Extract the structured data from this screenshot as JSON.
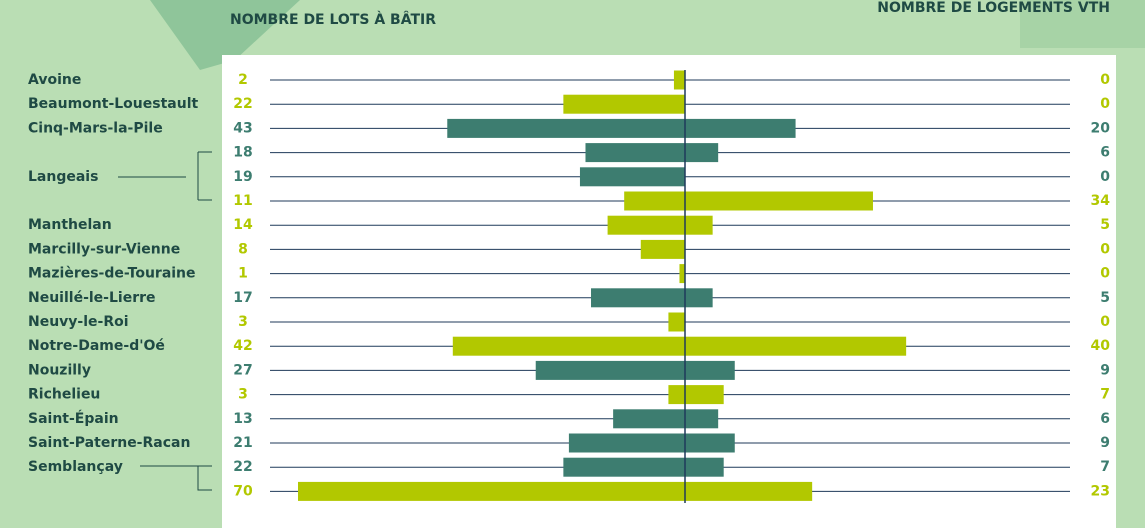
{
  "chart_data": {
    "type": "butterfly",
    "left_title": "NOMBRE DE LOTS À BÂTIR",
    "right_title": "NOMBRE DE LOGEMENTS VTH",
    "categories": [
      "Avoine",
      "Beaumont-Louestault",
      "Cinq-Mars-la-Pile",
      null,
      "Langeais",
      null,
      "Manthelan",
      "Marcilly-sur-Vienne",
      "Mazières-de-Touraine",
      "Neuillé-le-Lierre",
      "Neuvy-le-Roi",
      "Notre-Dame-d'Oé",
      "Nouzilly",
      "Richelieu",
      "Saint-Épain",
      "Saint-Paterne-Racan",
      "Semblançay",
      null
    ],
    "series": [
      {
        "name": "NOMBRE DE LOTS À BÂTIR",
        "side": "left",
        "values": [
          2,
          22,
          43,
          18,
          19,
          11,
          14,
          8,
          1,
          17,
          3,
          42,
          27,
          3,
          13,
          21,
          22,
          70
        ]
      },
      {
        "name": "NOMBRE DE LOGEMENTS VTH",
        "side": "right",
        "values": [
          0,
          0,
          20,
          6,
          0,
          34,
          5,
          0,
          0,
          5,
          0,
          40,
          9,
          7,
          6,
          9,
          7,
          23
        ]
      }
    ],
    "colors": [
      "#b2c800",
      "#b2c800",
      "#3d7d70",
      "#3d7d70",
      "#3d7d70",
      "#b2c800",
      "#b2c800",
      "#b2c800",
      "#b2c800",
      "#3d7d70",
      "#b2c800",
      "#b2c800",
      "#3d7d70",
      "#b2c800",
      "#3d7d70",
      "#3d7d70",
      "#3d7d70",
      "#b2c800"
    ],
    "xlim": [
      0,
      70
    ]
  }
}
